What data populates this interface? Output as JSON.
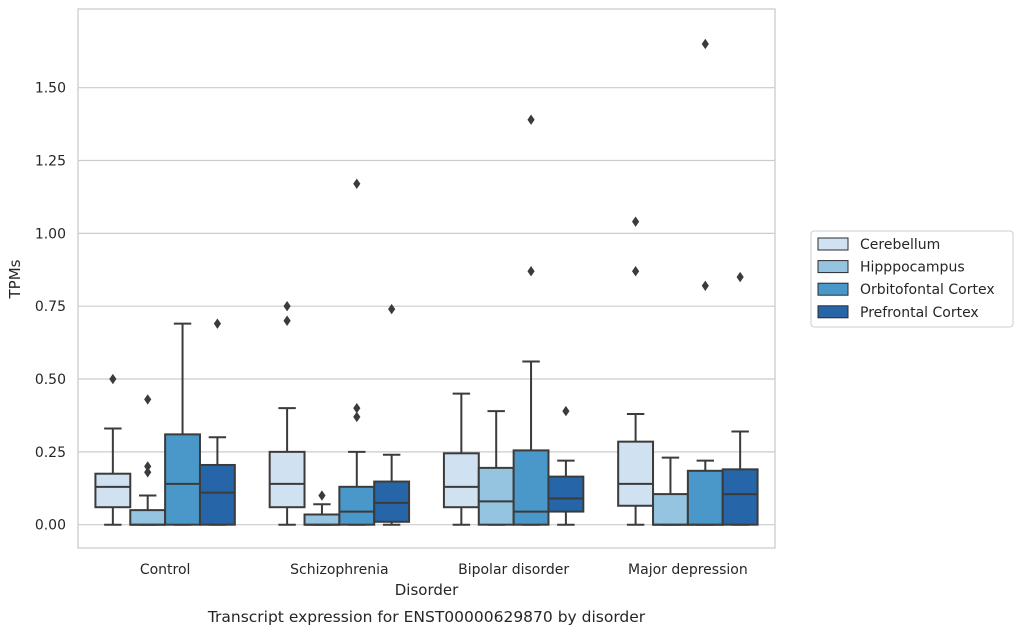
{
  "chart_data": {
    "type": "box",
    "caption": "Transcript expression for ENST00000629870 by disorder",
    "xlabel": "Disorder",
    "ylabel": "TPMs",
    "categories": [
      "Control",
      "Schizophrenia",
      "Bipolar disorder",
      "Major depression"
    ],
    "ylim": [
      -0.08,
      1.77
    ],
    "yticks": [
      "0.00",
      "0.25",
      "0.50",
      "0.75",
      "1.00",
      "1.25",
      "1.50"
    ],
    "grid": true,
    "legend_position": "right",
    "series": [
      {
        "name": "Cerebellum",
        "color": "#d0e1f2",
        "boxes": [
          {
            "whislo": 0.0,
            "q1": 0.06,
            "med": 0.13,
            "q3": 0.175,
            "whishi": 0.33,
            "fliers": [
              0.5
            ]
          },
          {
            "whislo": 0.0,
            "q1": 0.06,
            "med": 0.14,
            "q3": 0.25,
            "whishi": 0.4,
            "fliers": [
              0.7,
              0.75
            ]
          },
          {
            "whislo": 0.0,
            "q1": 0.06,
            "med": 0.13,
            "q3": 0.245,
            "whishi": 0.45,
            "fliers": []
          },
          {
            "whislo": 0.0,
            "q1": 0.065,
            "med": 0.14,
            "q3": 0.285,
            "whishi": 0.38,
            "fliers": [
              0.87,
              1.04
            ]
          }
        ]
      },
      {
        "name": "Hipppocampus",
        "color": "#94c4df",
        "boxes": [
          {
            "whislo": 0.0,
            "q1": 0.0,
            "med": 0.0,
            "q3": 0.05,
            "whishi": 0.1,
            "fliers": [
              0.18,
              0.2,
              0.43
            ]
          },
          {
            "whislo": 0.0,
            "q1": 0.0,
            "med": 0.0,
            "q3": 0.035,
            "whishi": 0.07,
            "fliers": [
              0.1
            ]
          },
          {
            "whislo": 0.0,
            "q1": 0.0,
            "med": 0.08,
            "q3": 0.195,
            "whishi": 0.39,
            "fliers": []
          },
          {
            "whislo": 0.0,
            "q1": 0.0,
            "med": 0.0,
            "q3": 0.105,
            "whishi": 0.23,
            "fliers": []
          }
        ]
      },
      {
        "name": "Orbitofontal Cortex",
        "color": "#4a98c9",
        "boxes": [
          {
            "whislo": 0.0,
            "q1": 0.0,
            "med": 0.14,
            "q3": 0.31,
            "whishi": 0.69,
            "fliers": []
          },
          {
            "whislo": 0.0,
            "q1": 0.0,
            "med": 0.045,
            "q3": 0.13,
            "whishi": 0.25,
            "fliers": [
              0.37,
              0.4,
              1.17
            ]
          },
          {
            "whislo": 0.0,
            "q1": 0.0,
            "med": 0.045,
            "q3": 0.255,
            "whishi": 0.56,
            "fliers": [
              0.87,
              1.39
            ]
          },
          {
            "whislo": 0.0,
            "q1": 0.0,
            "med": 0.0,
            "q3": 0.185,
            "whishi": 0.22,
            "fliers": [
              0.82,
              1.65
            ]
          }
        ]
      },
      {
        "name": "Prefrontal Cortex",
        "color": "#2666a8",
        "boxes": [
          {
            "whislo": 0.0,
            "q1": 0.0,
            "med": 0.11,
            "q3": 0.205,
            "whishi": 0.3,
            "fliers": [
              0.69
            ]
          },
          {
            "whislo": 0.0,
            "q1": 0.01,
            "med": 0.075,
            "q3": 0.148,
            "whishi": 0.24,
            "fliers": [
              0.74
            ]
          },
          {
            "whislo": 0.0,
            "q1": 0.045,
            "med": 0.09,
            "q3": 0.165,
            "whishi": 0.22,
            "fliers": [
              0.39
            ]
          },
          {
            "whislo": 0.0,
            "q1": 0.0,
            "med": 0.105,
            "q3": 0.19,
            "whishi": 0.32,
            "fliers": [
              0.85
            ]
          }
        ]
      }
    ]
  }
}
